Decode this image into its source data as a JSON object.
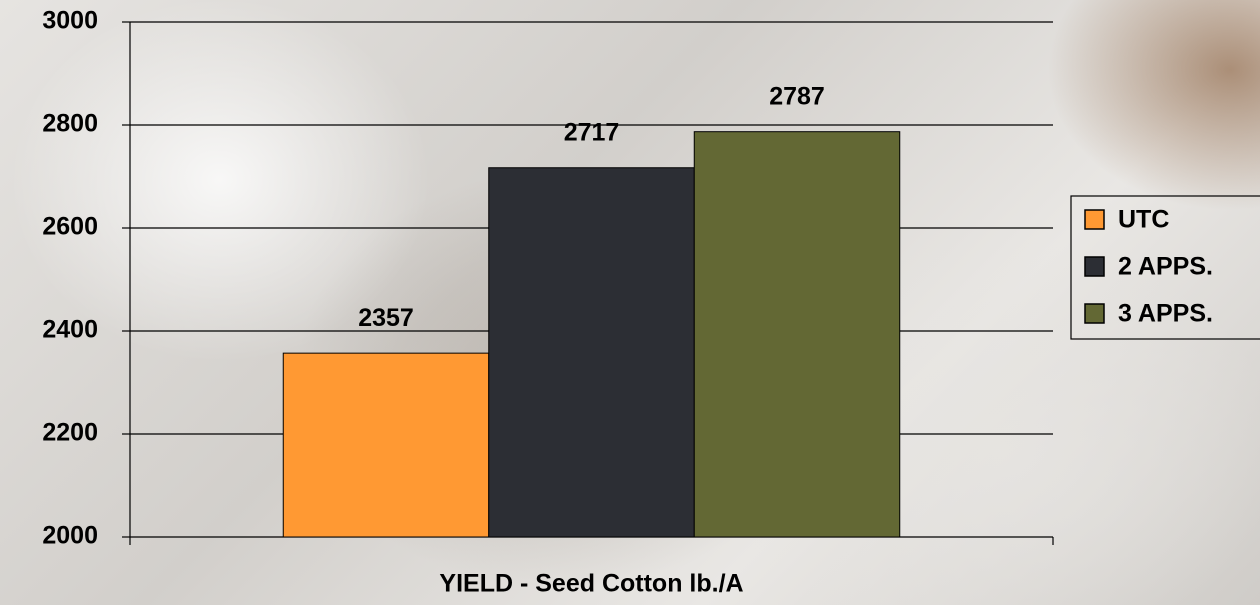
{
  "chart_data": {
    "type": "bar",
    "categories": [
      "YIELD - Seed Cotton lb./A"
    ],
    "series": [
      {
        "name": "UTC",
        "color": "#ff9933",
        "values": [
          2357
        ]
      },
      {
        "name": "2 APPS.",
        "color": "#2c2e34",
        "values": [
          2717
        ]
      },
      {
        "name": "3 APPS.",
        "color": "#636834",
        "values": [
          2787
        ]
      }
    ],
    "ylim": [
      2000,
      3000
    ],
    "yticks": [
      2000,
      2200,
      2400,
      2600,
      2800,
      3000
    ],
    "grid": true,
    "legend": "right"
  }
}
